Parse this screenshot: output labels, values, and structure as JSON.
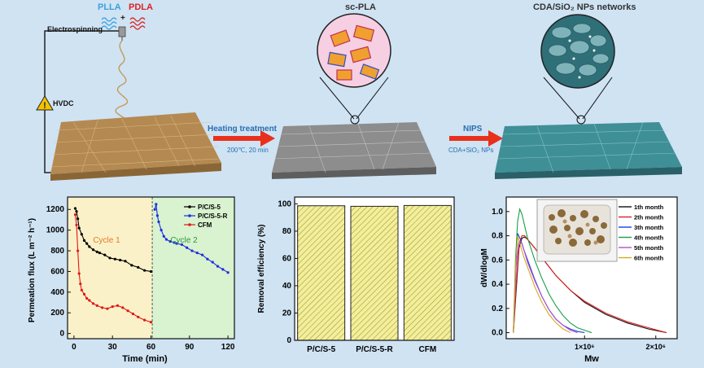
{
  "top": {
    "plla": "PLLA",
    "pdla": "PDLA",
    "plus": "+",
    "electrospinning": "Electrospinning",
    "hvdc": "HVDC",
    "sc_pla": "sc-PLA",
    "heating": "Heating treatment",
    "heating_cond": "200℃, 20 min",
    "nips": "NIPS",
    "nips_cond": "CDA+SiO₂ NPs",
    "networks": "CDA/SiO₂ NPs networks"
  },
  "colors": {
    "plla": "#3aa0e0",
    "pdla": "#e02020",
    "arrow": "#e8301c",
    "accent": "#2a6db0",
    "fiber": "#b8925a",
    "gray_mat": "#8a8a8a",
    "teal_mat": "#3f8f97"
  },
  "chart_data": [
    {
      "type": "line",
      "xlabel": "Time (min)",
      "ylabel": "Permeation flux (L m⁻² h⁻¹)",
      "xlim": [
        -5,
        125
      ],
      "ylim": [
        -50,
        1320
      ],
      "xticks": [
        0,
        30,
        60,
        90,
        120
      ],
      "yticks": [
        0,
        200,
        400,
        600,
        800,
        1000,
        1200
      ],
      "annotations": [
        "Cycle 1",
        "Cycle 2"
      ],
      "legend": "top-right",
      "series": [
        {
          "name": "P/C/S-5",
          "color": "#000000",
          "x": [
            1,
            2,
            3,
            4,
            6,
            8,
            10,
            12,
            15,
            18,
            20,
            24,
            28,
            32,
            36,
            40,
            45,
            50,
            55,
            60
          ],
          "y": [
            1210,
            1180,
            1110,
            1020,
            960,
            900,
            870,
            840,
            810,
            790,
            780,
            760,
            730,
            720,
            710,
            700,
            660,
            640,
            610,
            600
          ]
        },
        {
          "name": "P/C/S-5-R",
          "color": "#1e2ee0",
          "x": [
            63,
            64,
            65,
            66,
            68,
            70,
            72,
            75,
            78,
            80,
            84,
            88,
            92,
            96,
            100,
            104,
            108,
            112,
            116,
            120
          ],
          "y": [
            1200,
            1250,
            1140,
            1080,
            1000,
            940,
            910,
            890,
            880,
            870,
            860,
            830,
            800,
            780,
            760,
            720,
            690,
            650,
            620,
            590
          ]
        },
        {
          "name": "CFM",
          "color": "#e01818",
          "x": [
            1,
            2,
            3,
            4,
            5,
            6,
            8,
            10,
            12,
            15,
            18,
            22,
            26,
            30,
            34,
            38,
            42,
            46,
            50,
            55,
            60
          ],
          "y": [
            1150,
            1050,
            800,
            580,
            480,
            420,
            380,
            340,
            320,
            290,
            270,
            250,
            240,
            260,
            270,
            250,
            220,
            190,
            160,
            130,
            110
          ]
        }
      ]
    },
    {
      "type": "bar",
      "ylabel": "Removal efficiency (%)",
      "categories": [
        "P/C/S-5",
        "P/C/S-5-R",
        "CFM"
      ],
      "values": [
        98.6,
        98.2,
        98.8
      ],
      "ylim": [
        0,
        105
      ],
      "yticks": [
        0,
        20,
        40,
        60,
        80,
        100
      ]
    },
    {
      "type": "line",
      "xlabel": "Mw",
      "ylabel": "dW/dlogM",
      "xlim": [
        -100000,
        2300000
      ],
      "ylim": [
        -0.05,
        1.12
      ],
      "xtick_labels": [
        "1×10⁶",
        "2×10⁶"
      ],
      "xticks": [
        1000000,
        2000000
      ],
      "yticks": [
        0.0,
        0.2,
        0.4,
        0.6,
        0.8,
        1.0
      ],
      "legend": "top-right",
      "series": [
        {
          "name": "1th month",
          "color": "#111111",
          "x": [
            0,
            40000,
            80000,
            120000,
            160000,
            200000,
            300000,
            400000,
            600000,
            800000,
            1000000,
            1300000,
            1600000,
            1900000,
            2150000
          ],
          "y": [
            0.0,
            0.35,
            0.7,
            0.78,
            0.79,
            0.77,
            0.7,
            0.62,
            0.47,
            0.35,
            0.25,
            0.15,
            0.08,
            0.03,
            0.0
          ]
        },
        {
          "name": "2th month",
          "color": "#e02020",
          "x": [
            0,
            40000,
            80000,
            120000,
            160000,
            200000,
            300000,
            400000,
            600000,
            800000,
            1000000,
            1300000,
            1600000,
            1900000,
            2150000
          ],
          "y": [
            0.0,
            0.4,
            0.72,
            0.8,
            0.8,
            0.77,
            0.7,
            0.62,
            0.47,
            0.35,
            0.26,
            0.16,
            0.09,
            0.04,
            0.0
          ]
        },
        {
          "name": "3th month",
          "color": "#1e3ee0",
          "x": [
            0,
            30000,
            60000,
            100000,
            150000,
            200000,
            300000,
            400000,
            500000,
            600000,
            700000,
            800000,
            900000,
            1000000
          ],
          "y": [
            0.0,
            0.5,
            0.82,
            0.77,
            0.68,
            0.6,
            0.44,
            0.3,
            0.19,
            0.11,
            0.06,
            0.03,
            0.01,
            0.0
          ]
        },
        {
          "name": "4th month",
          "color": "#1aa048",
          "x": [
            0,
            30000,
            60000,
            90000,
            120000,
            160000,
            200000,
            300000,
            400000,
            500000,
            600000,
            700000,
            800000,
            900000,
            1000000,
            1100000
          ],
          "y": [
            0.0,
            0.6,
            0.92,
            1.02,
            0.98,
            0.88,
            0.78,
            0.6,
            0.45,
            0.32,
            0.22,
            0.14,
            0.08,
            0.04,
            0.02,
            0.0
          ]
        },
        {
          "name": "5th month",
          "color": "#b050d0",
          "x": [
            0,
            40000,
            80000,
            120000,
            160000,
            200000,
            300000,
            400000,
            500000,
            600000,
            700000,
            800000,
            900000
          ],
          "y": [
            0.0,
            0.55,
            0.76,
            0.74,
            0.66,
            0.58,
            0.43,
            0.3,
            0.19,
            0.11,
            0.06,
            0.02,
            0.0
          ]
        },
        {
          "name": "6th month",
          "color": "#d4a820",
          "x": [
            0,
            30000,
            60000,
            100000,
            150000,
            200000,
            300000,
            400000,
            500000,
            600000,
            700000,
            800000
          ],
          "y": [
            0.0,
            0.55,
            0.8,
            0.72,
            0.62,
            0.54,
            0.38,
            0.25,
            0.15,
            0.08,
            0.03,
            0.0
          ]
        }
      ]
    }
  ]
}
